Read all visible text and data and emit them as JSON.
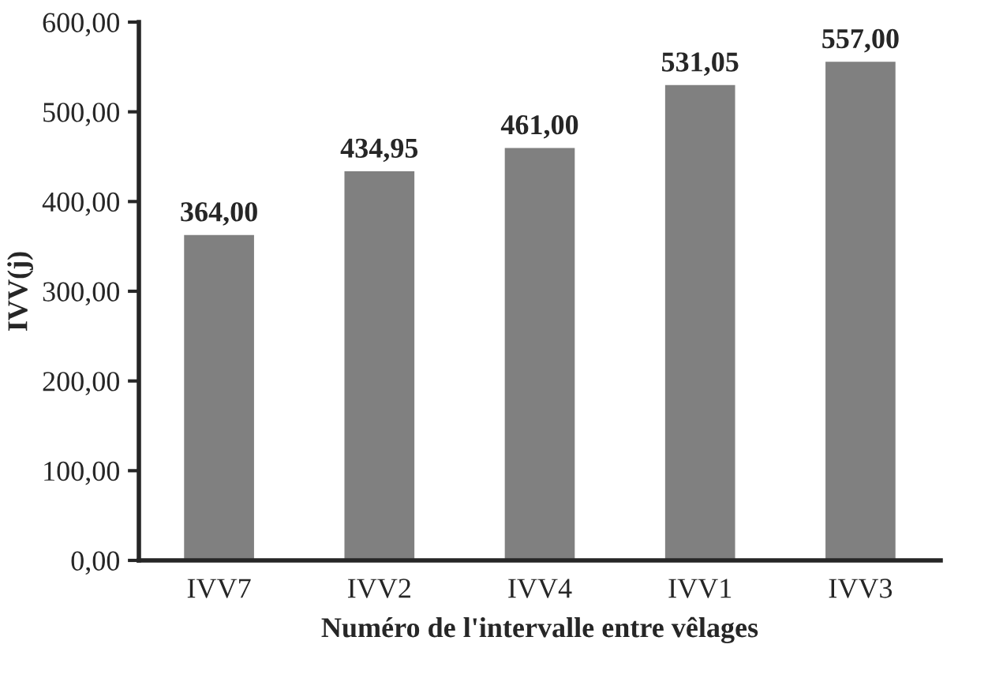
{
  "chart_data": {
    "type": "bar",
    "xlabel": "Numéro de l'intervalle entre vêlages",
    "ylabel": "IVV(j)",
    "categories": [
      "IVV7",
      "IVV2",
      "IVV4",
      "IVV1",
      "IVV3"
    ],
    "values": [
      364,
      434.95,
      461,
      531.05,
      557
    ],
    "value_labels": [
      "364,00",
      "434,95",
      "461,00",
      "531,05",
      "557,00"
    ],
    "color": "#808080",
    "ylim": [
      0,
      600
    ],
    "yticks": [
      {
        "value": 0,
        "label": "0,00"
      },
      {
        "value": 100,
        "label": "100,00"
      },
      {
        "value": 200,
        "label": "200,00"
      },
      {
        "value": 300,
        "label": "300,00"
      },
      {
        "value": 400,
        "label": "400,00"
      },
      {
        "value": 500,
        "label": "500,00"
      },
      {
        "value": 600,
        "label": "600,00"
      }
    ],
    "grid": false,
    "legend": false
  }
}
